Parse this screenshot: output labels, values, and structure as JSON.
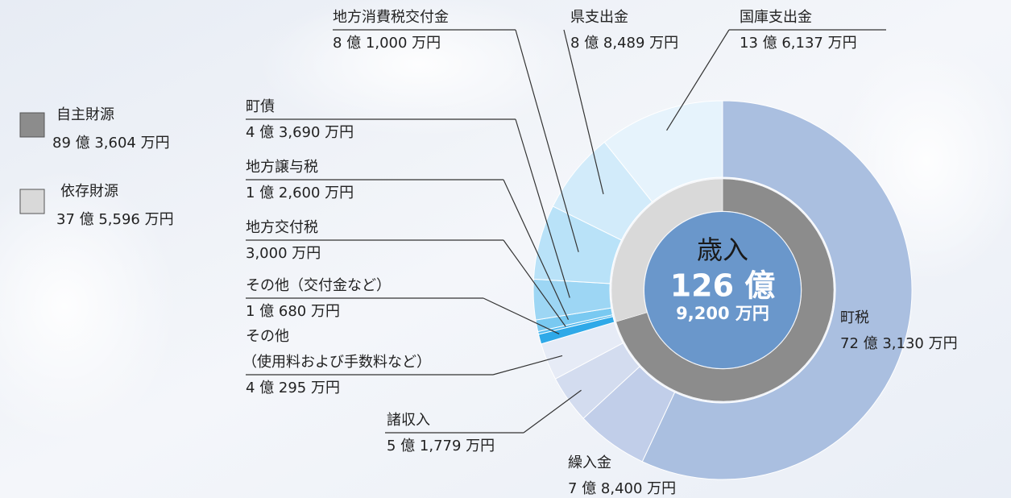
{
  "chart_data": {
    "type": "sunburst",
    "center_title": "歳入",
    "total": 1269200,
    "total_labels": [
      "126 億",
      "9,200 万円"
    ],
    "inner": {
      "labels": [
        "自主財源",
        "依存財源"
      ],
      "values": [
        893604,
        375596
      ],
      "value_labels": [
        "89 億 3,604 万円",
        "37 億 5,596 万円"
      ],
      "colors": [
        "#8c8c8c",
        "#d9d9d9"
      ]
    },
    "outer": {
      "labels": [
        [
          "町税"
        ],
        [
          "繰入金"
        ],
        [
          "諸収入"
        ],
        [
          "その他",
          "（使用料および手数料など）"
        ],
        [
          "その他（交付金など）"
        ],
        [
          "地方交付税"
        ],
        [
          "地方譲与税"
        ],
        [
          "町債"
        ],
        [
          "地方消費税交付金"
        ],
        [
          "県支出金"
        ],
        [
          "国庫支出金"
        ]
      ],
      "values": [
        723130,
        78400,
        51779,
        40295,
        10680,
        3000,
        12600,
        43690,
        81000,
        88489,
        136137
      ],
      "value_labels": [
        "72 億 3,130 万円",
        "7 億 8,400 万円",
        "5 億 1,779 万円",
        "4 億 295 万円",
        "1 億 680 万円",
        "3,000 万円",
        "1 億 2,600 万円",
        "4 億 3,690 万円",
        "8 億 1,000 万円",
        "8 億 8,489 万円",
        "13 億 6,137 万円"
      ],
      "colors": [
        "#aabfe0",
        "#c1cee9",
        "#d3dcef",
        "#e6ebf6",
        "#2fa9e8",
        "#55baee",
        "#79c9f1",
        "#9dd6f4",
        "#b9e2f8",
        "#d2ebfa",
        "#e6f3fc"
      ]
    }
  }
}
